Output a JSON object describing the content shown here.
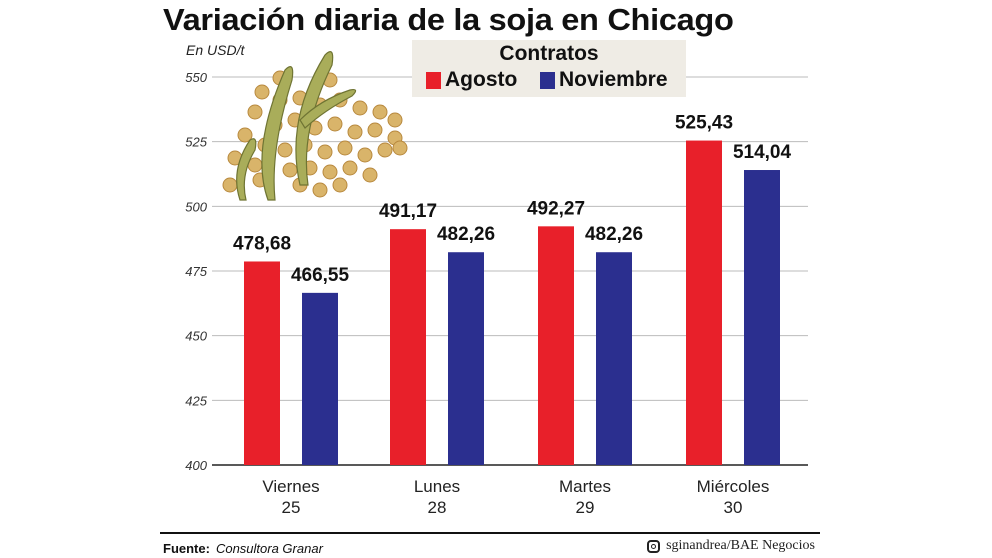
{
  "chart_data": {
    "type": "bar",
    "title": "Variación diaria de la soja en Chicago",
    "ylabel": "En USD/t",
    "ylim": [
      400,
      550
    ],
    "yticks": [
      400,
      425,
      450,
      475,
      500,
      525,
      550
    ],
    "grid": true,
    "legend_title": "Contratos",
    "legend_placement": "top",
    "categories": [
      [
        "Viernes",
        "25"
      ],
      [
        "Lunes",
        "28"
      ],
      [
        "Martes",
        "29"
      ],
      [
        "Miércoles",
        "30"
      ]
    ],
    "series": [
      {
        "name": "Agosto",
        "color": "#e8202a",
        "values": [
          478.68,
          491.17,
          492.27,
          525.43
        ],
        "labels": [
          "478,68",
          "491,17",
          "492,27",
          "525,43"
        ]
      },
      {
        "name": "Noviembre",
        "color": "#2b2f8f",
        "values": [
          466.55,
          482.26,
          482.26,
          514.04
        ],
        "labels": [
          "466,55",
          "482,26",
          "482,26",
          "514,04"
        ]
      }
    ]
  },
  "footer": {
    "source_label": "Fuente:",
    "source": "Consultora Granar",
    "credit_icon": "instagram-icon",
    "credit": "sginandrea/BAE Negocios"
  }
}
